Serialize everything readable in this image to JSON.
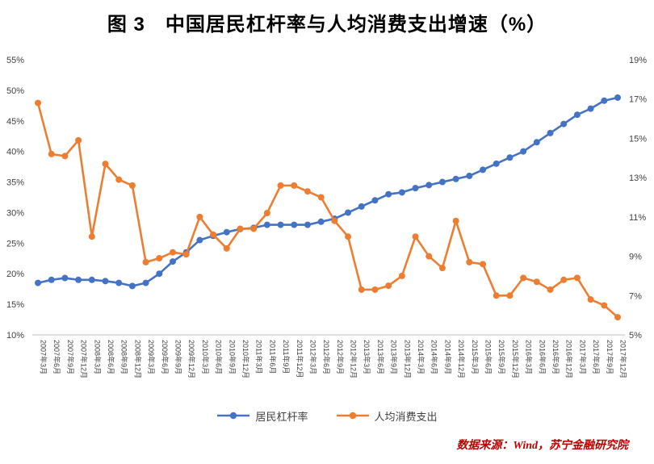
{
  "title": "图 3　中国居民杠杆率与人均消费支出增速（%）",
  "source": "数据来源：Wind，苏宁金融研究院",
  "legend": {
    "series1": "居民杠杆率",
    "series2": "人均消费支出"
  },
  "colors": {
    "leverage": "#4472C4",
    "consumption": "#ED7D31",
    "axis_text": "#404040",
    "axis_line": "#BFBFBF",
    "source_text": "#C00000",
    "title_text": "#000000"
  },
  "chart_data": {
    "type": "line",
    "title": "图 3　中国居民杠杆率与人均消费支出增速（%）",
    "grid": false,
    "legend_position": "bottom",
    "left_axis": {
      "min": 10,
      "max": 55,
      "step": 5,
      "suffix": "%",
      "ticks": [
        "55%",
        "50%",
        "45%",
        "40%",
        "35%",
        "30%",
        "25%",
        "20%",
        "15%",
        "10%"
      ]
    },
    "right_axis": {
      "min": 5,
      "max": 19,
      "step": 2,
      "suffix": "%",
      "ticks": [
        "19%",
        "17%",
        "15%",
        "13%",
        "11%",
        "9%",
        "7%",
        "5%"
      ]
    },
    "categories": [
      "2007年3月",
      "2007年6月",
      "2007年9月",
      "2007年12月",
      "2008年3月",
      "2008年6月",
      "2008年9月",
      "2008年12月",
      "2009年3月",
      "2009年6月",
      "2009年9月",
      "2009年12月",
      "2010年3月",
      "2010年6月",
      "2010年9月",
      "2010年12月",
      "2011年3月",
      "2011年6月",
      "2011年9月",
      "2011年12月",
      "2012年3月",
      "2012年6月",
      "2012年9月",
      "2012年12月",
      "2013年3月",
      "2013年6月",
      "2013年9月",
      "2013年12月",
      "2014年3月",
      "2014年6月",
      "2014年9月",
      "2014年12月",
      "2015年3月",
      "2015年6月",
      "2015年9月",
      "2015年12月",
      "2016年3月",
      "2016年6月",
      "2016年9月",
      "2016年12月",
      "2017年3月",
      "2017年6月",
      "2017年9月",
      "2017年12月"
    ],
    "series": [
      {
        "name": "居民杠杆率",
        "axis": "left",
        "color": "#4472C4",
        "values": [
          18.5,
          19.0,
          19.3,
          19.0,
          19.0,
          18.8,
          18.5,
          18.0,
          18.5,
          20.0,
          22.0,
          23.5,
          25.5,
          26.2,
          26.8,
          27.3,
          27.5,
          28.0,
          28.0,
          28.0,
          28.0,
          28.5,
          29.0,
          30.0,
          31.0,
          32.0,
          33.0,
          33.3,
          34.0,
          34.5,
          35.0,
          35.5,
          36.0,
          37.0,
          38.0,
          39.0,
          40.0,
          41.5,
          43.0,
          44.5,
          46.0,
          47.0,
          48.3,
          48.8
        ]
      },
      {
        "name": "人均消费支出",
        "axis": "right",
        "color": "#ED7D31",
        "values": [
          16.8,
          14.2,
          14.1,
          14.9,
          10.0,
          13.7,
          12.9,
          12.6,
          8.7,
          8.9,
          9.2,
          9.1,
          11.0,
          10.1,
          9.4,
          10.4,
          10.4,
          11.2,
          12.6,
          12.6,
          12.3,
          12.0,
          10.8,
          10.0,
          7.3,
          7.3,
          7.5,
          8.0,
          10.0,
          9.0,
          8.4,
          10.8,
          8.7,
          8.6,
          7.0,
          7.0,
          7.9,
          7.7,
          7.3,
          7.8,
          7.9,
          6.8,
          6.5,
          5.9
        ]
      }
    ]
  }
}
